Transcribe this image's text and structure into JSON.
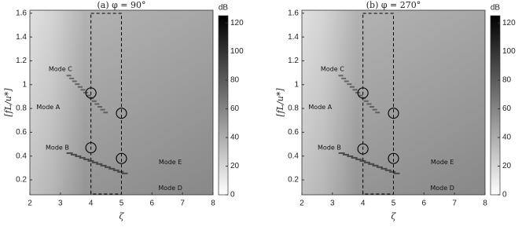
{
  "chart_data": [
    {
      "type": "heatmap",
      "title": "(a) φ = 90°",
      "xlabel": "ζ",
      "ylabel": "[fL/u*]",
      "xlim": [
        2,
        8
      ],
      "ylim": [
        0.075,
        1.625
      ],
      "xticks": [
        2,
        3,
        4,
        5,
        6,
        7,
        8
      ],
      "yticks": [
        0.2,
        0.4,
        0.6,
        0.8,
        1,
        1.2,
        1.4,
        1.6
      ],
      "colorbar": {
        "label": "dB",
        "lim": [
          0,
          125
        ],
        "ticks": [
          0,
          20,
          40,
          60,
          80,
          100,
          120
        ]
      },
      "annotations": [
        {
          "text": "Mode C",
          "x": 3.0,
          "y": 1.13
        },
        {
          "text": "Mode A",
          "x": 2.6,
          "y": 0.81
        },
        {
          "text": "Mode B",
          "x": 2.9,
          "y": 0.47
        },
        {
          "text": "Mode E",
          "x": 6.6,
          "y": 0.35
        },
        {
          "text": "Mode D",
          "x": 6.6,
          "y": 0.13
        }
      ],
      "circles": [
        {
          "x": 4,
          "y": 0.93
        },
        {
          "x": 5,
          "y": 0.76
        },
        {
          "x": 4,
          "y": 0.47
        },
        {
          "x": 5,
          "y": 0.38
        }
      ],
      "highlight_x": [
        4,
        5
      ]
    },
    {
      "type": "heatmap",
      "title": "(b) φ = 270°",
      "xlabel": "ζ",
      "ylabel": "[fL/u*]",
      "xlim": [
        2,
        8
      ],
      "ylim": [
        0.075,
        1.625
      ],
      "xticks": [
        2,
        3,
        4,
        5,
        6,
        7,
        8
      ],
      "yticks": [
        0.2,
        0.4,
        0.6,
        0.8,
        1,
        1.2,
        1.4,
        1.6
      ],
      "colorbar": {
        "label": "dB",
        "lim": [
          0,
          125
        ],
        "ticks": [
          0,
          20,
          40,
          60,
          80,
          100,
          120
        ]
      },
      "annotations": [
        {
          "text": "Mode C",
          "x": 3.0,
          "y": 1.13
        },
        {
          "text": "Mode A",
          "x": 2.6,
          "y": 0.81
        },
        {
          "text": "Mode B",
          "x": 2.9,
          "y": 0.47
        },
        {
          "text": "Mode E",
          "x": 6.6,
          "y": 0.35
        },
        {
          "text": "Mode D",
          "x": 6.6,
          "y": 0.13
        }
      ],
      "circles": [
        {
          "x": 4,
          "y": 0.93
        },
        {
          "x": 5,
          "y": 0.76
        },
        {
          "x": 4,
          "y": 0.46
        },
        {
          "x": 5,
          "y": 0.38
        }
      ],
      "highlight_x": [
        4,
        5
      ]
    }
  ]
}
